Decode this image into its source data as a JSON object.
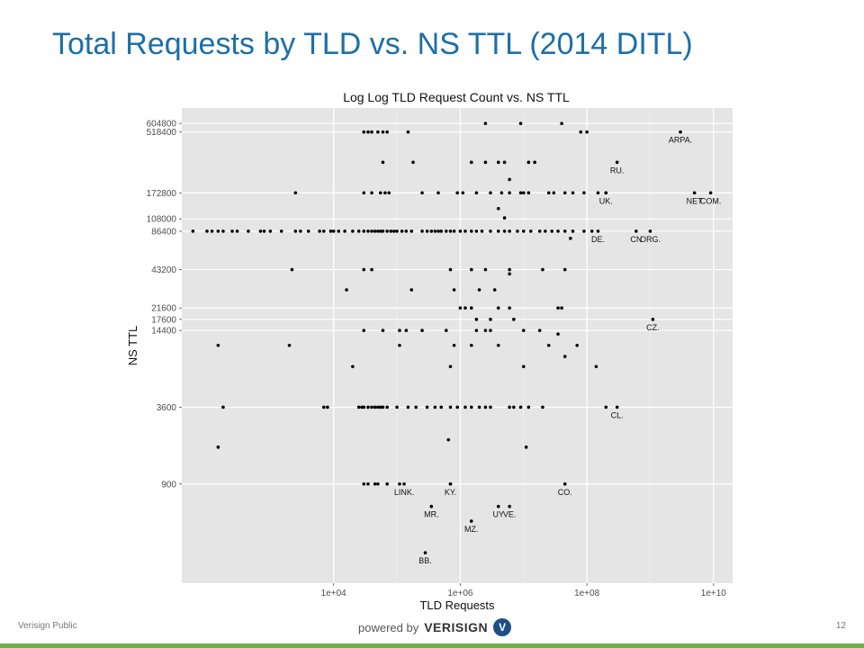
{
  "slide": {
    "title": "Total Requests by TLD vs. NS TTL (2014 DITL)",
    "footer_left": "Verisign Public",
    "page_number": "12",
    "powered_by": "powered by",
    "brand": "VERISIGN",
    "logo_glyph": "V",
    "accent_color": "#1c6fa8",
    "bar_color": "#6db33f"
  },
  "chart_data": {
    "type": "scatter",
    "title": "Log Log TLD Request Count vs. NS TTL",
    "xlabel": "TLD Requests",
    "ylabel": "NS TTL",
    "x_scale": "log10",
    "y_scale": "log10",
    "xlim": [
      40,
      20000000000
    ],
    "ylim": [
      150,
      800000
    ],
    "x_ticks": [
      {
        "value": 10000,
        "label": "1e+04"
      },
      {
        "value": 1000000,
        "label": "1e+06"
      },
      {
        "value": 100000000,
        "label": "1e+08"
      },
      {
        "value": 10000000000,
        "label": "1e+10"
      }
    ],
    "y_ticks": [
      {
        "value": 900,
        "label": "900"
      },
      {
        "value": 3600,
        "label": "3600"
      },
      {
        "value": 14400,
        "label": "14400"
      },
      {
        "value": 17600,
        "label": "17600"
      },
      {
        "value": 21600,
        "label": "21600"
      },
      {
        "value": 43200,
        "label": "43200"
      },
      {
        "value": 86400,
        "label": "86400"
      },
      {
        "value": 108000,
        "label": "108000"
      },
      {
        "value": 172800,
        "label": "172800"
      },
      {
        "value": 518400,
        "label": "518400"
      },
      {
        "value": 604800,
        "label": "604800"
      }
    ],
    "grid": true,
    "labeled_points": [
      {
        "label": "ARPA.",
        "x": 3000000000,
        "y": 518400
      },
      {
        "label": "RU.",
        "x": 300000000,
        "y": 300000
      },
      {
        "label": "UK.",
        "x": 200000000,
        "y": 172800
      },
      {
        "label": "NET",
        "x": 5000000000,
        "y": 172800
      },
      {
        "label": "COM.",
        "x": 9000000000,
        "y": 172800
      },
      {
        "label": "DE.",
        "x": 150000000,
        "y": 86400
      },
      {
        "label": "CN",
        "x": 600000000,
        "y": 86400
      },
      {
        "label": "ORG.",
        "x": 1000000000,
        "y": 86400
      },
      {
        "label": "CZ.",
        "x": 1100000000,
        "y": 17600
      },
      {
        "label": "CL.",
        "x": 300000000,
        "y": 3600
      },
      {
        "label": "CO.",
        "x": 45000000,
        "y": 900
      },
      {
        "label": "LINK.",
        "x": 130000,
        "y": 900
      },
      {
        "label": "KY.",
        "x": 700000,
        "y": 900
      },
      {
        "label": "MR.",
        "x": 350000,
        "y": 600
      },
      {
        "label": "UY",
        "x": 4000000,
        "y": 600
      },
      {
        "label": "VE.",
        "x": 6000000,
        "y": 600
      },
      {
        "label": "MZ.",
        "x": 1500000,
        "y": 460
      },
      {
        "label": "BB.",
        "x": 280000,
        "y": 260
      }
    ],
    "points": [
      [
        30000,
        518400
      ],
      [
        35000,
        518400
      ],
      [
        40000,
        518400
      ],
      [
        50000,
        518400
      ],
      [
        60000,
        518400
      ],
      [
        70000,
        518400
      ],
      [
        150000,
        518400
      ],
      [
        80000000,
        518400
      ],
      [
        100000000,
        518400
      ],
      [
        2500000,
        604800
      ],
      [
        9000000,
        604800
      ],
      [
        40000000,
        604800
      ],
      [
        60000,
        300000
      ],
      [
        180000,
        300000
      ],
      [
        1500000,
        300000
      ],
      [
        2500000,
        300000
      ],
      [
        4000000,
        300000
      ],
      [
        5000000,
        300000
      ],
      [
        12000000,
        300000
      ],
      [
        15000000,
        300000
      ],
      [
        6000000,
        220000
      ],
      [
        2500,
        172800
      ],
      [
        30000,
        172800
      ],
      [
        40000,
        172800
      ],
      [
        55000,
        172800
      ],
      [
        65000,
        172800
      ],
      [
        75000,
        172800
      ],
      [
        250000,
        172800
      ],
      [
        450000,
        172800
      ],
      [
        900000,
        172800
      ],
      [
        1100000,
        172800
      ],
      [
        1800000,
        172800
      ],
      [
        3000000,
        172800
      ],
      [
        4500000,
        172800
      ],
      [
        6000000,
        172800
      ],
      [
        9000000,
        172800
      ],
      [
        10000000,
        172800
      ],
      [
        12000000,
        172800
      ],
      [
        25000000,
        172800
      ],
      [
        30000000,
        172800
      ],
      [
        45000000,
        172800
      ],
      [
        60000000,
        172800
      ],
      [
        90000000,
        172800
      ],
      [
        150000000,
        172800
      ],
      [
        200000000,
        172800
      ],
      [
        4000000,
        130000
      ],
      [
        5000000,
        110000
      ],
      [
        60,
        86400
      ],
      [
        100,
        86400
      ],
      [
        120,
        86400
      ],
      [
        150,
        86400
      ],
      [
        180,
        86400
      ],
      [
        250,
        86400
      ],
      [
        300,
        86400
      ],
      [
        450,
        86400
      ],
      [
        700,
        86400
      ],
      [
        800,
        86400
      ],
      [
        1000,
        86400
      ],
      [
        1500,
        86400
      ],
      [
        2500,
        86400
      ],
      [
        3000,
        86400
      ],
      [
        4000,
        86400
      ],
      [
        6000,
        86400
      ],
      [
        7000,
        86400
      ],
      [
        9000,
        86400
      ],
      [
        10000,
        86400
      ],
      [
        12000,
        86400
      ],
      [
        15000,
        86400
      ],
      [
        20000,
        86400
      ],
      [
        25000,
        86400
      ],
      [
        30000,
        86400
      ],
      [
        35000,
        86400
      ],
      [
        40000,
        86400
      ],
      [
        45000,
        86400
      ],
      [
        50000,
        86400
      ],
      [
        55000,
        86400
      ],
      [
        60000,
        86400
      ],
      [
        70000,
        86400
      ],
      [
        80000,
        86400
      ],
      [
        90000,
        86400
      ],
      [
        100000,
        86400
      ],
      [
        120000,
        86400
      ],
      [
        140000,
        86400
      ],
      [
        170000,
        86400
      ],
      [
        250000,
        86400
      ],
      [
        300000,
        86400
      ],
      [
        350000,
        86400
      ],
      [
        400000,
        86400
      ],
      [
        450000,
        86400
      ],
      [
        500000,
        86400
      ],
      [
        600000,
        86400
      ],
      [
        700000,
        86400
      ],
      [
        800000,
        86400
      ],
      [
        1000000,
        86400
      ],
      [
        1200000,
        86400
      ],
      [
        1500000,
        86400
      ],
      [
        1800000,
        86400
      ],
      [
        2200000,
        86400
      ],
      [
        3000000,
        86400
      ],
      [
        4000000,
        86400
      ],
      [
        5000000,
        86400
      ],
      [
        6000000,
        86400
      ],
      [
        8000000,
        86400
      ],
      [
        10000000,
        86400
      ],
      [
        13000000,
        86400
      ],
      [
        18000000,
        86400
      ],
      [
        22000000,
        86400
      ],
      [
        28000000,
        86400
      ],
      [
        35000000,
        86400
      ],
      [
        45000000,
        86400
      ],
      [
        60000000,
        86400
      ],
      [
        90000000,
        86400
      ],
      [
        120000000,
        86400
      ],
      [
        55000000,
        76000
      ],
      [
        2200,
        43200
      ],
      [
        30000,
        43200
      ],
      [
        40000,
        43200
      ],
      [
        700000,
        43200
      ],
      [
        1500000,
        43200
      ],
      [
        2500000,
        43200
      ],
      [
        6000000,
        43200
      ],
      [
        20000000,
        43200
      ],
      [
        45000000,
        43200
      ],
      [
        6000000,
        40000
      ],
      [
        16000,
        30000
      ],
      [
        170000,
        30000
      ],
      [
        800000,
        30000
      ],
      [
        2000000,
        30000
      ],
      [
        3500000,
        30000
      ],
      [
        1000000,
        21600
      ],
      [
        1200000,
        21600
      ],
      [
        1500000,
        21600
      ],
      [
        4000000,
        21600
      ],
      [
        6000000,
        21600
      ],
      [
        35000000,
        21600
      ],
      [
        40000000,
        21600
      ],
      [
        1800000,
        17600
      ],
      [
        3000000,
        17600
      ],
      [
        7000000,
        17600
      ],
      [
        30000,
        14400
      ],
      [
        60000,
        14400
      ],
      [
        110000,
        14400
      ],
      [
        140000,
        14400
      ],
      [
        250000,
        14400
      ],
      [
        600000,
        14400
      ],
      [
        1800000,
        14400
      ],
      [
        2500000,
        14400
      ],
      [
        3000000,
        14400
      ],
      [
        10000000,
        14400
      ],
      [
        18000000,
        14400
      ],
      [
        35000000,
        13500
      ],
      [
        150,
        11000
      ],
      [
        2000,
        11000
      ],
      [
        110000,
        11000
      ],
      [
        800000,
        11000
      ],
      [
        1500000,
        11000
      ],
      [
        4000000,
        11000
      ],
      [
        25000000,
        11000
      ],
      [
        70000000,
        11000
      ],
      [
        45000000,
        9000
      ],
      [
        20000,
        7500
      ],
      [
        700000,
        7500
      ],
      [
        10000000,
        7500
      ],
      [
        140000000,
        7500
      ],
      [
        180,
        3600
      ],
      [
        7000,
        3600
      ],
      [
        8000,
        3600
      ],
      [
        25000,
        3600
      ],
      [
        28000,
        3600
      ],
      [
        30000,
        3600
      ],
      [
        35000,
        3600
      ],
      [
        40000,
        3600
      ],
      [
        45000,
        3600
      ],
      [
        50000,
        3600
      ],
      [
        55000,
        3600
      ],
      [
        60000,
        3600
      ],
      [
        70000,
        3600
      ],
      [
        100000,
        3600
      ],
      [
        150000,
        3600
      ],
      [
        200000,
        3600
      ],
      [
        300000,
        3600
      ],
      [
        400000,
        3600
      ],
      [
        500000,
        3600
      ],
      [
        700000,
        3600
      ],
      [
        900000,
        3600
      ],
      [
        1200000,
        3600
      ],
      [
        1500000,
        3600
      ],
      [
        2000000,
        3600
      ],
      [
        2500000,
        3600
      ],
      [
        3000000,
        3600
      ],
      [
        6000000,
        3600
      ],
      [
        7000000,
        3600
      ],
      [
        9000000,
        3600
      ],
      [
        12000000,
        3600
      ],
      [
        20000000,
        3600
      ],
      [
        200000000,
        3600
      ],
      [
        650000,
        2000
      ],
      [
        150,
        1750
      ],
      [
        11000000,
        1750
      ],
      [
        30000,
        900
      ],
      [
        35000,
        900
      ],
      [
        45000,
        900
      ],
      [
        50000,
        900
      ],
      [
        70000,
        900
      ],
      [
        110000,
        900
      ],
      [
        700000,
        900
      ],
      [
        45000000,
        900
      ]
    ]
  }
}
